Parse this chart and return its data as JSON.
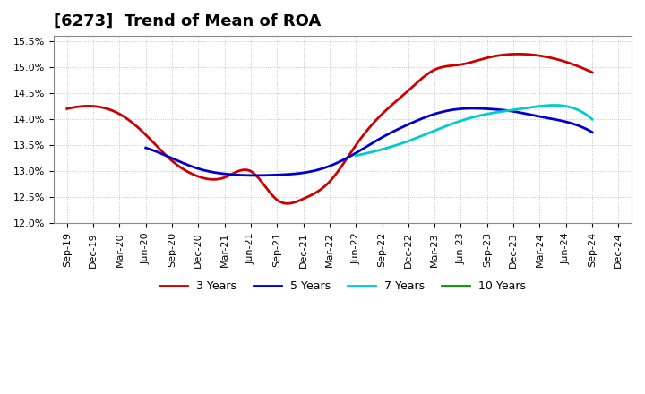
{
  "title": "[6273]  Trend of Mean of ROA",
  "x_labels": [
    "Sep-19",
    "Dec-19",
    "Mar-20",
    "Jun-20",
    "Sep-20",
    "Dec-20",
    "Mar-21",
    "Jun-21",
    "Sep-21",
    "Dec-21",
    "Mar-22",
    "Jun-22",
    "Sep-22",
    "Dec-22",
    "Mar-23",
    "Jun-23",
    "Sep-23",
    "Dec-23",
    "Mar-24",
    "Jun-24",
    "Sep-24",
    "Dec-24"
  ],
  "r3_x": [
    0,
    1,
    2,
    3,
    4,
    5,
    6,
    7,
    8,
    9,
    10,
    11,
    12,
    13,
    14,
    15,
    16,
    17,
    18,
    19,
    20
  ],
  "r3_y": [
    14.2,
    14.25,
    14.1,
    13.7,
    13.2,
    12.9,
    12.88,
    13.0,
    12.45,
    12.47,
    12.8,
    13.5,
    14.1,
    14.55,
    14.95,
    15.05,
    15.18,
    15.25,
    15.22,
    15.1,
    14.9
  ],
  "r5_x": [
    3,
    4,
    5,
    6,
    7,
    8,
    9,
    10,
    11,
    12,
    13,
    14,
    15,
    16,
    17,
    18,
    19,
    20
  ],
  "r5_y": [
    13.45,
    13.25,
    13.05,
    12.95,
    12.92,
    12.93,
    12.97,
    13.1,
    13.35,
    13.65,
    13.9,
    14.1,
    14.2,
    14.2,
    14.15,
    14.05,
    13.95,
    13.75
  ],
  "r7_x": [
    11,
    12,
    13,
    14,
    15,
    16,
    17,
    18,
    19,
    20
  ],
  "r7_y": [
    13.3,
    13.42,
    13.58,
    13.78,
    13.97,
    14.1,
    14.18,
    14.25,
    14.25,
    14.0
  ],
  "color_3y": "#cc0000",
  "color_5y": "#0000cc",
  "color_7y": "#00cccc",
  "color_10y": "#009900",
  "background_color": "#ffffff",
  "grid_color": "#999999",
  "title_fontsize": 13,
  "tick_fontsize": 8,
  "legend_fontsize": 9,
  "ylim_min": 12.0,
  "ylim_max": 15.6,
  "yticks": [
    12.0,
    12.5,
    13.0,
    13.5,
    14.0,
    14.5,
    15.0,
    15.5
  ]
}
